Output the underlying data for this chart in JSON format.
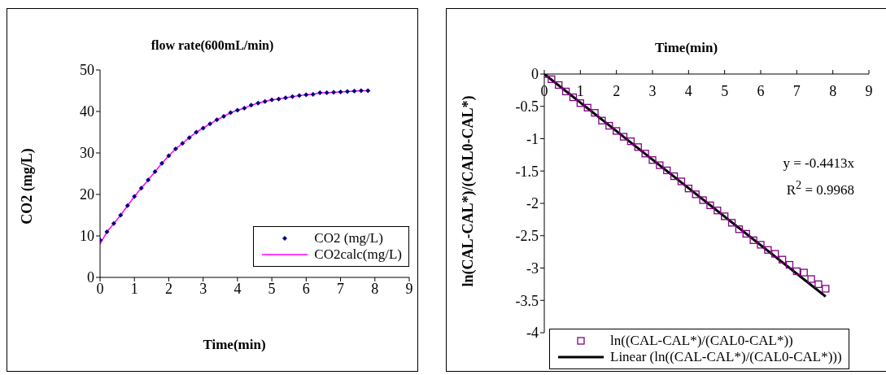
{
  "chart_data": [
    {
      "type": "scatter",
      "title": "flow rate(600mL/min)",
      "xlabel": "Time(min)",
      "ylabel": "CO2 (mg/L)",
      "xlim": [
        0,
        9
      ],
      "xticks": [
        0,
        1,
        2,
        3,
        4,
        5,
        6,
        7,
        8,
        9
      ],
      "ylim": [
        0,
        50
      ],
      "yticks": [
        0,
        10,
        20,
        30,
        40,
        50
      ],
      "legend": "bottom right",
      "grid": false,
      "x": [
        0,
        0.2,
        0.4,
        0.6,
        0.8,
        1,
        1.2,
        1.4,
        1.6,
        1.8,
        2,
        2.2,
        2.4,
        2.6,
        2.8,
        3,
        3.2,
        3.4,
        3.6,
        3.8,
        4,
        4.2,
        4.4,
        4.6,
        4.8,
        5,
        5.2,
        5.4,
        5.6,
        5.8,
        6,
        6.2,
        6.4,
        6.6,
        6.8,
        7,
        7.2,
        7.4,
        7.6,
        7.8
      ],
      "series": [
        {
          "name": "CO2 (mg/L)",
          "marker": "diamond",
          "color": "#000080",
          "values": [
            9,
            11,
            13,
            15,
            17.3,
            19.5,
            21.5,
            23.5,
            25.5,
            27.5,
            29.3,
            31,
            32.3,
            33.7,
            35,
            36,
            37,
            38,
            38.8,
            39.7,
            40.3,
            40.8,
            41.5,
            42,
            42.4,
            42.8,
            43,
            43.3,
            43.6,
            43.8,
            44,
            44.1,
            44.5,
            44.5,
            44.6,
            44.7,
            44.8,
            44.9,
            45,
            45
          ]
        },
        {
          "name": "CO2calc(mg/L)",
          "type": "line",
          "marker": "none",
          "color": "#ff00ff",
          "values": [
            8,
            11,
            13,
            15,
            17.3,
            19.5,
            21.5,
            23.5,
            25.5,
            27.5,
            29.3,
            31,
            32.3,
            33.7,
            35,
            36,
            37,
            38,
            38.8,
            39.7,
            40.3,
            40.8,
            41.5,
            42,
            42.4,
            42.8,
            43,
            43.3,
            43.6,
            43.8,
            44,
            44.1,
            44.5,
            44.5,
            44.6,
            44.7,
            44.8,
            44.9,
            45,
            45
          ]
        }
      ]
    },
    {
      "type": "scatter",
      "xlabel": "Time(min)",
      "ylabel": "ln(CAL-CAL*)/(CAL0-CAL*)",
      "xlim": [
        0,
        9
      ],
      "xticks": [
        0,
        1,
        2,
        3,
        4,
        5,
        6,
        7,
        8,
        9
      ],
      "ylim": [
        -4,
        0
      ],
      "yticks": [
        -4,
        -3.5,
        -3,
        -2.5,
        -2,
        -1.5,
        -1,
        -0.5,
        0
      ],
      "legend": "bottom",
      "grid": false,
      "annotations": [
        "y = -0.4413x",
        "R$^{2}$ = 0.9968"
      ],
      "x": [
        0,
        0.2,
        0.4,
        0.6,
        0.8,
        1,
        1.2,
        1.4,
        1.6,
        1.8,
        2,
        2.2,
        2.4,
        2.6,
        2.8,
        3,
        3.2,
        3.4,
        3.6,
        3.8,
        4,
        4.2,
        4.4,
        4.6,
        4.8,
        5,
        5.2,
        5.4,
        5.6,
        5.8,
        6,
        6.2,
        6.4,
        6.6,
        6.8,
        7,
        7.2,
        7.4,
        7.6,
        7.8
      ],
      "series": [
        {
          "name": "ln((CAL-CAL*)/(CAL0-CAL*))",
          "marker": "square",
          "color": "#800080",
          "values": [
            0,
            -0.08,
            -0.17,
            -0.27,
            -0.36,
            -0.45,
            -0.52,
            -0.6,
            -0.72,
            -0.8,
            -0.88,
            -0.97,
            -1.04,
            -1.13,
            -1.23,
            -1.33,
            -1.41,
            -1.49,
            -1.58,
            -1.66,
            -1.77,
            -1.86,
            -1.95,
            -2.03,
            -2.11,
            -2.2,
            -2.3,
            -2.4,
            -2.47,
            -2.57,
            -2.64,
            -2.72,
            -2.78,
            -2.87,
            -2.95,
            -3.05,
            -3.07,
            -3.17,
            -3.25,
            -3.32
          ]
        },
        {
          "name": "Linear (ln((CAL-CAL*)/(CAL0-CAL*)))",
          "type": "line",
          "marker": "none",
          "color": "#000000",
          "x": [
            0,
            7.8
          ],
          "values": [
            0,
            -3.44
          ]
        }
      ]
    }
  ]
}
